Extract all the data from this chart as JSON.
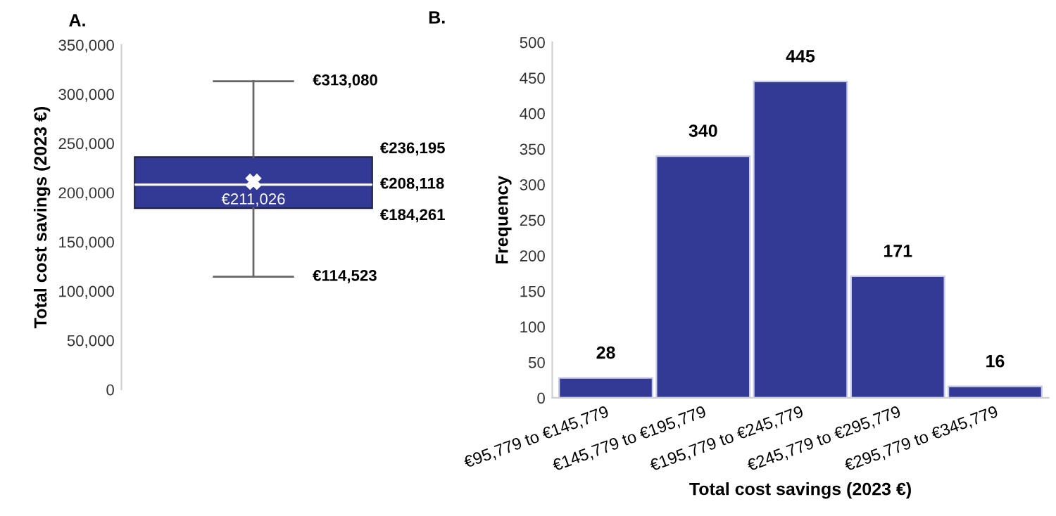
{
  "chart_data": [
    {
      "type": "box",
      "title": "A.",
      "ylabel": "Total cost savings (2023 €)",
      "categories": [
        null
      ],
      "boxes": [
        {
          "low": 114523,
          "q1": 184261,
          "median": 208118,
          "q3": 236195,
          "high": 313080,
          "mean": 211026
        }
      ],
      "color": "#333a96",
      "ylim": [
        0,
        350000
      ],
      "yticks": [
        {
          "value": 0,
          "label": "0"
        },
        {
          "value": 50000,
          "label": "50,000"
        },
        {
          "value": 100000,
          "label": "100,000"
        },
        {
          "value": 150000,
          "label": "150,000"
        },
        {
          "value": 200000,
          "label": "200,000"
        },
        {
          "value": 250000,
          "label": "250,000"
        },
        {
          "value": 300000,
          "label": "300,000"
        },
        {
          "value": 350000,
          "label": "350,000"
        }
      ],
      "annotations": [
        "€313,080",
        "€236,195",
        "€208,118",
        "€211,026",
        "€184,261",
        "€114,523"
      ]
    },
    {
      "type": "bar",
      "title": "B.",
      "xlabel": "Total cost savings (2023 €)",
      "ylabel": "Frequency",
      "categories": [
        "€95,779 to €145,779",
        "€145,779 to €195,779",
        "€195,779 to €245,779",
        "€245,779 to €295,779",
        "€295,779 to €345,779"
      ],
      "values": [
        28,
        340,
        445,
        171,
        16
      ],
      "color": "#333a96",
      "data_labels": true,
      "ylim": [
        0,
        500
      ],
      "yticks": [
        0,
        50,
        100,
        150,
        200,
        250,
        300,
        350,
        400,
        450,
        500
      ]
    }
  ]
}
